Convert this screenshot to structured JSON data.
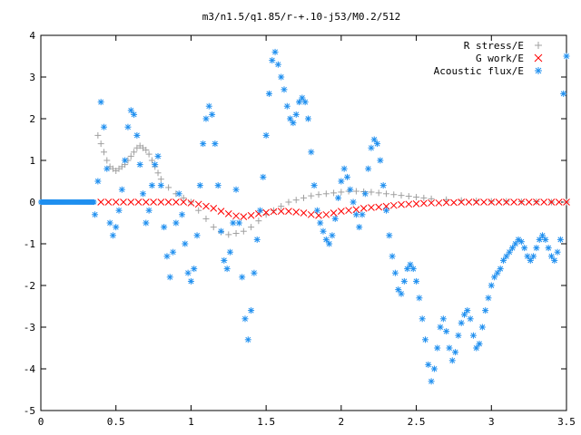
{
  "chart_data": {
    "type": "scatter",
    "title": "m3/n1.5/q1.85/r-+.10-j53/M0.2/512",
    "xlabel": "",
    "ylabel": "",
    "xlim": [
      0,
      3.5
    ],
    "ylim": [
      -5,
      4
    ],
    "xticks": [
      "0",
      "0.5",
      "1",
      "1.5",
      "2",
      "2.5",
      "3",
      "3.5"
    ],
    "yticks": [
      "-5",
      "-4",
      "-3",
      "-2",
      "-1",
      "0",
      "1",
      "2",
      "3",
      "4"
    ],
    "grid": false,
    "legend_position": "top-right",
    "series": [
      {
        "name": "R stress/E",
        "marker": "plus",
        "color": "#a0a0a0",
        "x": [
          0.38,
          0.4,
          0.42,
          0.44,
          0.46,
          0.48,
          0.5,
          0.52,
          0.54,
          0.56,
          0.58,
          0.6,
          0.62,
          0.64,
          0.66,
          0.68,
          0.7,
          0.72,
          0.74,
          0.76,
          0.78,
          0.8,
          0.85,
          0.9,
          0.95,
          1.0,
          1.05,
          1.1,
          1.15,
          1.2,
          1.25,
          1.3,
          1.35,
          1.4,
          1.45,
          1.5,
          1.55,
          1.6,
          1.65,
          1.7,
          1.75,
          1.8,
          1.85,
          1.9,
          1.95,
          2.0,
          2.05,
          2.1,
          2.15,
          2.2,
          2.25,
          2.3,
          2.35,
          2.4,
          2.45,
          2.5,
          2.55,
          2.6,
          2.7,
          2.8,
          2.9,
          3.0,
          3.1,
          3.2,
          3.3,
          3.4,
          3.5
        ],
        "y": [
          1.6,
          1.4,
          1.2,
          1.0,
          0.85,
          0.8,
          0.75,
          0.8,
          0.85,
          0.9,
          1.0,
          1.1,
          1.2,
          1.3,
          1.35,
          1.3,
          1.25,
          1.15,
          1.0,
          0.85,
          0.7,
          0.55,
          0.35,
          0.2,
          0.1,
          0.0,
          -0.2,
          -0.4,
          -0.6,
          -0.72,
          -0.78,
          -0.75,
          -0.7,
          -0.6,
          -0.45,
          -0.3,
          -0.2,
          -0.1,
          0.0,
          0.05,
          0.1,
          0.15,
          0.18,
          0.2,
          0.22,
          0.24,
          0.26,
          0.26,
          0.25,
          0.24,
          0.22,
          0.2,
          0.18,
          0.16,
          0.14,
          0.12,
          0.1,
          0.08,
          0.06,
          0.04,
          0.03,
          0.02,
          0.02,
          0.01,
          0.01,
          0.0,
          0.0
        ]
      },
      {
        "name": "G work/E",
        "marker": "cross",
        "color": "#ff0000",
        "x": [
          0.4,
          0.45,
          0.5,
          0.55,
          0.6,
          0.65,
          0.7,
          0.75,
          0.8,
          0.85,
          0.9,
          0.95,
          1.0,
          1.05,
          1.1,
          1.15,
          1.2,
          1.25,
          1.3,
          1.35,
          1.4,
          1.45,
          1.5,
          1.55,
          1.6,
          1.65,
          1.7,
          1.75,
          1.8,
          1.85,
          1.9,
          1.95,
          2.0,
          2.05,
          2.1,
          2.15,
          2.2,
          2.25,
          2.3,
          2.35,
          2.4,
          2.45,
          2.5,
          2.55,
          2.6,
          2.65,
          2.7,
          2.75,
          2.8,
          2.85,
          2.9,
          2.95,
          3.0,
          3.05,
          3.1,
          3.15,
          3.2,
          3.25,
          3.3,
          3.35,
          3.4,
          3.45,
          3.5
        ],
        "y": [
          0.0,
          0.0,
          0.0,
          0.0,
          0.0,
          0.0,
          0.0,
          0.0,
          0.0,
          0.0,
          0.0,
          0.0,
          -0.02,
          -0.05,
          -0.1,
          -0.15,
          -0.22,
          -0.28,
          -0.33,
          -0.35,
          -0.32,
          -0.28,
          -0.25,
          -0.23,
          -0.22,
          -0.22,
          -0.24,
          -0.26,
          -0.3,
          -0.32,
          -0.3,
          -0.26,
          -0.22,
          -0.2,
          -0.18,
          -0.15,
          -0.13,
          -0.12,
          -0.1,
          -0.08,
          -0.06,
          -0.05,
          -0.04,
          -0.03,
          -0.02,
          -0.02,
          -0.01,
          -0.01,
          0.0,
          0.0,
          0.0,
          0.0,
          0.0,
          0.0,
          0.0,
          0.0,
          0.0,
          0.0,
          0.0,
          0.0,
          0.0,
          0.0,
          0.0
        ]
      },
      {
        "name": "Acoustic flux/E",
        "marker": "star",
        "color": "#1f8fef",
        "x": [
          0.36,
          0.38,
          0.4,
          0.42,
          0.44,
          0.46,
          0.48,
          0.5,
          0.52,
          0.54,
          0.56,
          0.58,
          0.6,
          0.62,
          0.64,
          0.66,
          0.68,
          0.7,
          0.72,
          0.74,
          0.76,
          0.78,
          0.8,
          0.82,
          0.84,
          0.86,
          0.88,
          0.9,
          0.92,
          0.94,
          0.96,
          0.98,
          1.0,
          1.02,
          1.04,
          1.06,
          1.08,
          1.1,
          1.12,
          1.14,
          1.16,
          1.18,
          1.2,
          1.22,
          1.24,
          1.26,
          1.28,
          1.3,
          1.32,
          1.34,
          1.36,
          1.38,
          1.4,
          1.42,
          1.44,
          1.46,
          1.48,
          1.5,
          1.52,
          1.54,
          1.56,
          1.58,
          1.6,
          1.62,
          1.64,
          1.66,
          1.68,
          1.7,
          1.72,
          1.74,
          1.76,
          1.78,
          1.8,
          1.82,
          1.84,
          1.86,
          1.88,
          1.9,
          1.92,
          1.94,
          1.96,
          1.98,
          2.0,
          2.02,
          2.04,
          2.06,
          2.08,
          2.1,
          2.12,
          2.14,
          2.16,
          2.18,
          2.2,
          2.22,
          2.24,
          2.26,
          2.28,
          2.3,
          2.32,
          2.34,
          2.36,
          2.38,
          2.4,
          2.42,
          2.44,
          2.46,
          2.48,
          2.5,
          2.52,
          2.54,
          2.56,
          2.58,
          2.6,
          2.62,
          2.64,
          2.66,
          2.68,
          2.7,
          2.72,
          2.74,
          2.76,
          2.78,
          2.8,
          2.82,
          2.84,
          2.86,
          2.88,
          2.9,
          2.92,
          2.94,
          2.96,
          2.98,
          3.0,
          3.02,
          3.04,
          3.06,
          3.08,
          3.1,
          3.12,
          3.14,
          3.16,
          3.18,
          3.2,
          3.22,
          3.24,
          3.26,
          3.28,
          3.3,
          3.32,
          3.34,
          3.36,
          3.38,
          3.4,
          3.42,
          3.44,
          3.46,
          3.48,
          3.5
        ],
        "y": [
          -0.3,
          0.5,
          2.4,
          1.8,
          0.8,
          -0.5,
          -0.8,
          -0.6,
          -0.2,
          0.3,
          1.0,
          1.8,
          2.2,
          2.1,
          1.6,
          0.9,
          0.2,
          -0.5,
          -0.2,
          0.4,
          0.9,
          1.1,
          0.4,
          -0.6,
          -1.3,
          -1.8,
          -1.2,
          -0.5,
          0.2,
          -0.3,
          -1.0,
          -1.7,
          -1.9,
          -1.6,
          -0.8,
          0.4,
          1.4,
          2.0,
          2.3,
          2.1,
          1.4,
          0.4,
          -0.7,
          -1.4,
          -1.6,
          -1.2,
          -0.5,
          0.3,
          -0.5,
          -1.8,
          -2.8,
          -3.3,
          -2.6,
          -1.7,
          -0.9,
          -0.2,
          0.6,
          1.6,
          2.6,
          3.4,
          3.6,
          3.3,
          3.0,
          2.7,
          2.3,
          2.0,
          1.9,
          2.1,
          2.4,
          2.5,
          2.4,
          2.0,
          1.2,
          0.4,
          -0.2,
          -0.5,
          -0.7,
          -0.9,
          -1.0,
          -0.8,
          -0.4,
          0.1,
          0.5,
          0.8,
          0.6,
          0.3,
          0.0,
          -0.3,
          -0.6,
          -0.3,
          0.2,
          0.8,
          1.3,
          1.5,
          1.4,
          1.0,
          0.4,
          -0.2,
          -0.8,
          -1.3,
          -1.7,
          -2.1,
          -2.2,
          -1.9,
          -1.6,
          -1.5,
          -1.6,
          -1.9,
          -2.3,
          -2.8,
          -3.3,
          -3.9,
          -4.3,
          -4.0,
          -3.5,
          -3.0,
          -2.8,
          -3.1,
          -3.5,
          -3.8,
          -3.6,
          -3.2,
          -2.9,
          -2.7,
          -2.6,
          -2.8,
          -3.2,
          -3.5,
          -3.4,
          -3.0,
          -2.6,
          -2.3,
          -2.0,
          -1.8,
          -1.7,
          -1.6,
          -1.4,
          -1.3,
          -1.2,
          -1.1,
          -1.0,
          -0.9,
          -0.95,
          -1.1,
          -1.3,
          -1.4,
          -1.3,
          -1.1,
          -0.9,
          -0.8,
          -0.9,
          -1.1,
          -1.3,
          -1.4,
          -1.2,
          -0.9,
          2.6,
          3.5
        ]
      }
    ]
  }
}
